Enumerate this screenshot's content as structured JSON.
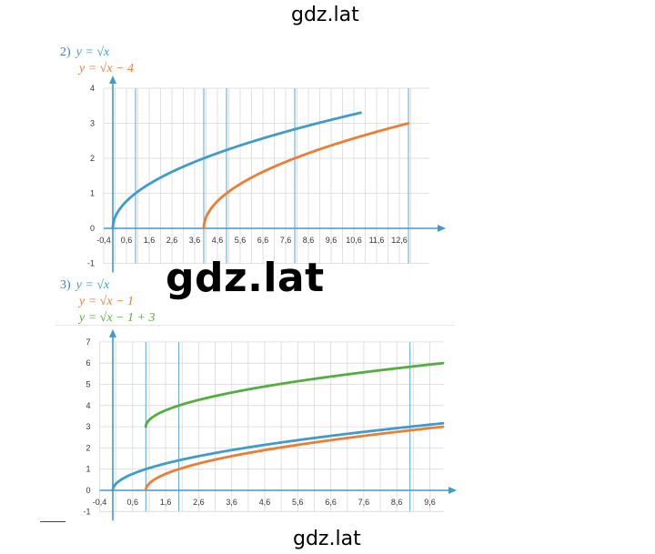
{
  "watermark": {
    "top": "gdz.lat",
    "middle": "gdz.lat",
    "bottom": "gdz.lat"
  },
  "chart_data": [
    {
      "type": "line",
      "label": "2)",
      "series": [
        {
          "name": "y = √x",
          "color": "#3e9bcd",
          "expr": "sqrt(x)",
          "x_start": 0,
          "x_end": 10.9
        },
        {
          "name": "y = √x − 4",
          "color": "#ee7d33",
          "expr": "sqrt(x-4)",
          "x_start": 4,
          "x_end": 13
        }
      ],
      "xlim": [
        -0.4,
        13.4
      ],
      "ylim": [
        -1,
        4
      ],
      "x_ticks": [
        "-0,4",
        "0,6",
        "1,6",
        "2,6",
        "3,6",
        "4,6",
        "5,6",
        "6,6",
        "7,6",
        "8,6",
        "9,6",
        "10,6",
        "11,6",
        "12,6"
      ],
      "y_ticks": [
        "-1",
        "0",
        "1",
        "2",
        "3",
        "4"
      ],
      "grid": true,
      "vertical_markers": [
        1,
        4,
        5,
        8,
        13
      ]
    },
    {
      "type": "line",
      "label": "3)",
      "series": [
        {
          "name": "y = √x",
          "color": "#3e9bcd",
          "expr": "sqrt(x)",
          "x_start": 0,
          "x_end": 10
        },
        {
          "name": "y = √x − 1",
          "color": "#ee7d33",
          "expr": "sqrt(x-1)",
          "x_start": 1,
          "x_end": 10
        },
        {
          "name": "y = √x − 1 + 3",
          "color": "#53ae3f",
          "expr": "sqrt(x-1)+3",
          "x_start": 1,
          "x_end": 10
        }
      ],
      "xlim": [
        -0.4,
        10
      ],
      "ylim": [
        -1,
        7
      ],
      "x_ticks": [
        "-0,4",
        "0,6",
        "1,6",
        "2,6",
        "3,6",
        "4,6",
        "5,6",
        "6,6",
        "7,6",
        "8,6",
        "9,6"
      ],
      "y_ticks": [
        "-1",
        "0",
        "1",
        "2",
        "3",
        "4",
        "5",
        "6",
        "7"
      ],
      "grid": true,
      "vertical_markers": [
        1,
        2,
        9
      ]
    }
  ]
}
